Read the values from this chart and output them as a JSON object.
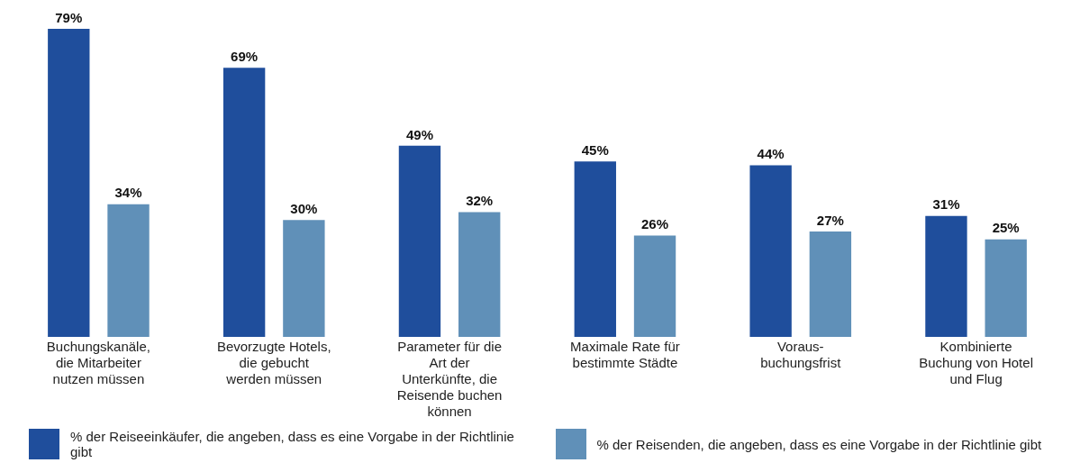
{
  "chart_data": {
    "type": "bar",
    "categories": [
      "Buchungskanäle, die Mitarbeiter nutzen müssen",
      "Bevorzugte Hotels, die gebucht werden müssen",
      "Parameter für die Art der Unterkünfte, die Reisende buchen können",
      "Maximale Rate für bestimmte Städte",
      "Voraus-buchungsfrist",
      "Kombinierte Buchung von Hotel und Flug"
    ],
    "series": [
      {
        "name": "% der Reiseeinkäufer, die angeben, dass es eine Vorgabe in der Richtlinie gibt",
        "color": "#1f4e9c",
        "values": [
          79,
          69,
          49,
          45,
          44,
          31
        ],
        "value_labels": [
          "79%",
          "69%",
          "49%",
          "45%",
          "44%",
          "31%"
        ]
      },
      {
        "name": "% der Reisenden, die angeben, dass es eine Vorgabe in der Richtlinie gibt",
        "color": "#6090b8",
        "values": [
          34,
          30,
          32,
          26,
          27,
          25
        ],
        "value_labels": [
          "34%",
          "30%",
          "32%",
          "26%",
          "27%",
          "25%"
        ]
      }
    ],
    "legend": "bottom",
    "grid": false
  }
}
